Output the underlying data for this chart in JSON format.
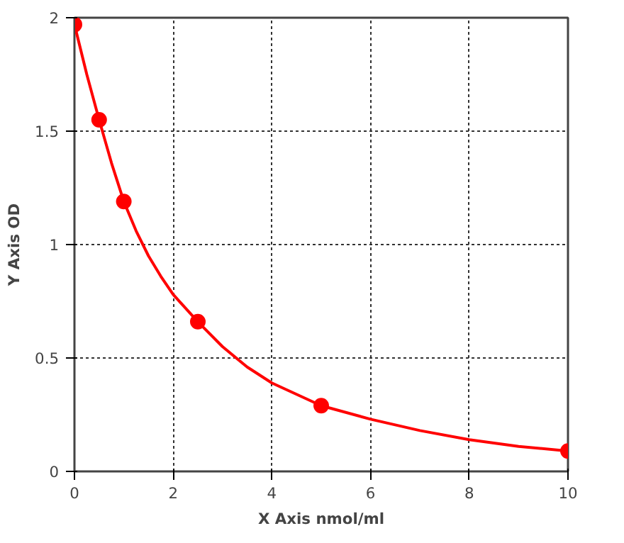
{
  "chart_data": {
    "type": "scatter",
    "xlabel": "X Axis nmol/ml",
    "ylabel": "Y Axis OD",
    "xlim": [
      0,
      10
    ],
    "ylim": [
      0,
      2
    ],
    "xticks": [
      0,
      2,
      4,
      6,
      8,
      10
    ],
    "yticks": [
      0,
      0.5,
      1,
      1.5,
      2
    ],
    "grid": true,
    "series": [
      {
        "color": "#ff0000",
        "marker": "circle",
        "x": [
          0,
          0.5,
          1,
          2.5,
          5,
          10
        ],
        "values": [
          1.97,
          1.55,
          1.19,
          0.66,
          0.29,
          0.09
        ]
      },
      {
        "type": "line",
        "color": "#ff0000",
        "line_style": "solid",
        "marker": "none",
        "x": [
          0,
          0.25,
          0.5,
          0.75,
          1,
          1.25,
          1.5,
          1.75,
          2,
          2.5,
          3,
          3.5,
          4,
          5,
          6,
          7,
          8,
          9,
          10
        ],
        "values": [
          1.97,
          1.75,
          1.55,
          1.36,
          1.19,
          1.06,
          0.95,
          0.86,
          0.78,
          0.66,
          0.55,
          0.46,
          0.39,
          0.29,
          0.23,
          0.18,
          0.14,
          0.11,
          0.09
        ]
      }
    ]
  }
}
